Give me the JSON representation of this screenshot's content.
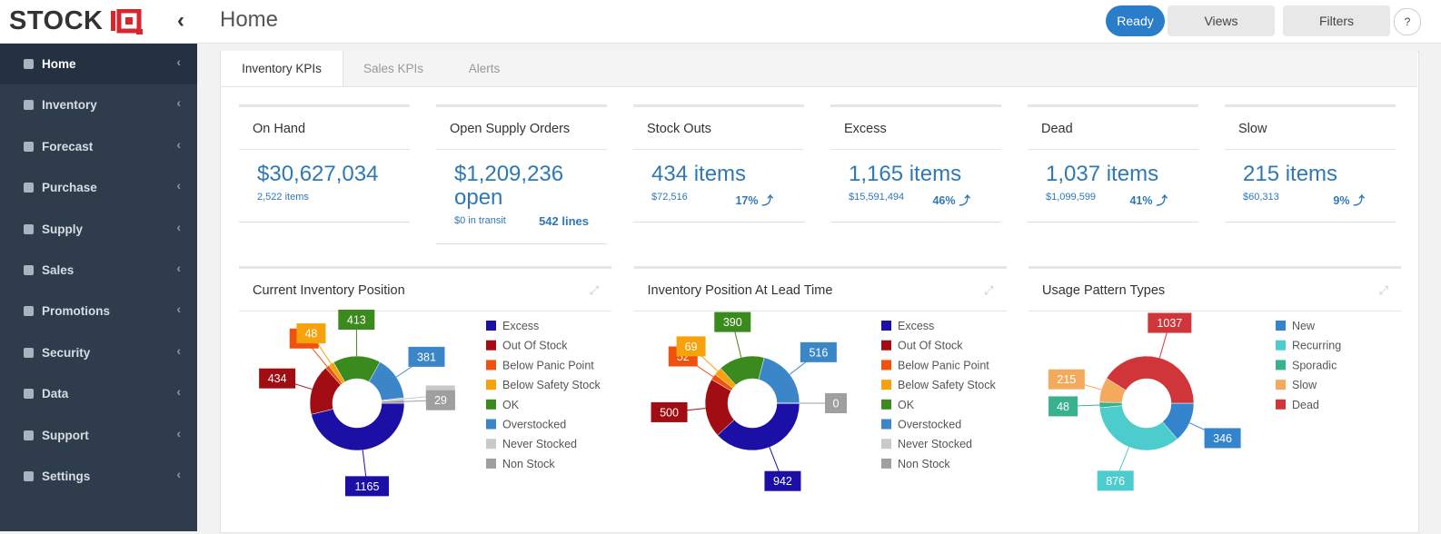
{
  "header": {
    "logo": "STOCK",
    "page_title": "Home",
    "buttons": [
      "Ready",
      "Views",
      "Filters",
      "?"
    ]
  },
  "sidebar": {
    "items": [
      "Home",
      "Inventory",
      "Forecast",
      "Purchase",
      "Supply",
      "Sales",
      "Promotions",
      "Security",
      "Data",
      "Support",
      "Settings"
    ]
  },
  "tabs": [
    "Inventory KPIs",
    "Sales KPIs",
    "Alerts"
  ],
  "kpis": [
    {
      "title": "On Hand",
      "value": "$30,627,034",
      "sub": "2,522 items"
    },
    {
      "title": "Open Supply Orders",
      "value": "$1,209,236 open",
      "sub": "$0 in transit",
      "extra": "542 lines"
    },
    {
      "title": "Stock Outs",
      "value": "434 items",
      "sub": "$72,516",
      "extra": "17%"
    },
    {
      "title": "Excess",
      "value": "1,165 items",
      "sub": "$15,591,494",
      "extra": "46%"
    },
    {
      "title": "Dead",
      "value": "1,037 items",
      "sub": "$1,099,599",
      "extra": "41%"
    },
    {
      "title": "Slow",
      "value": "215 items",
      "sub": "$60,313",
      "extra": "9%"
    }
  ],
  "charts": [
    {
      "type": "pie",
      "title": "Current Inventory Position",
      "categories": [
        "Excess",
        "Out Of Stock",
        "Below Panic Point",
        "Below Safety Stock",
        "OK",
        "Overstocked",
        "Never Stocked",
        "Non Stock"
      ],
      "values": [
        1165,
        434,
        35,
        48,
        413,
        381,
        17,
        29
      ],
      "colors": [
        "#1c0fa6",
        "#a10d12",
        "#f0510e",
        "#f6a20c",
        "#3b8a1d",
        "#3b86c9",
        "#c9c9c9",
        "#9f9f9f"
      ]
    },
    {
      "type": "pie",
      "title": "Inventory Position At Lead Time",
      "categories": [
        "Excess",
        "Out Of Stock",
        "Below Panic Point",
        "Below Safety Stock",
        "OK",
        "Overstocked",
        "Never Stocked",
        "Non Stock"
      ],
      "values": [
        942,
        500,
        52,
        69,
        390,
        516,
        0,
        0
      ],
      "colors": [
        "#1c0fa6",
        "#a10d12",
        "#f0510e",
        "#f6a20c",
        "#3b8a1d",
        "#3b86c9",
        "#c9c9c9",
        "#9f9f9f"
      ]
    },
    {
      "type": "pie",
      "title": "Usage Pattern Types",
      "categories": [
        "New",
        "Recurring",
        "Sporadic",
        "Slow",
        "Dead"
      ],
      "values": [
        346,
        876,
        48,
        215,
        1037
      ],
      "colors": [
        "#3384cc",
        "#4ccccc",
        "#38b28e",
        "#f4aa5c",
        "#cf3539"
      ]
    }
  ]
}
